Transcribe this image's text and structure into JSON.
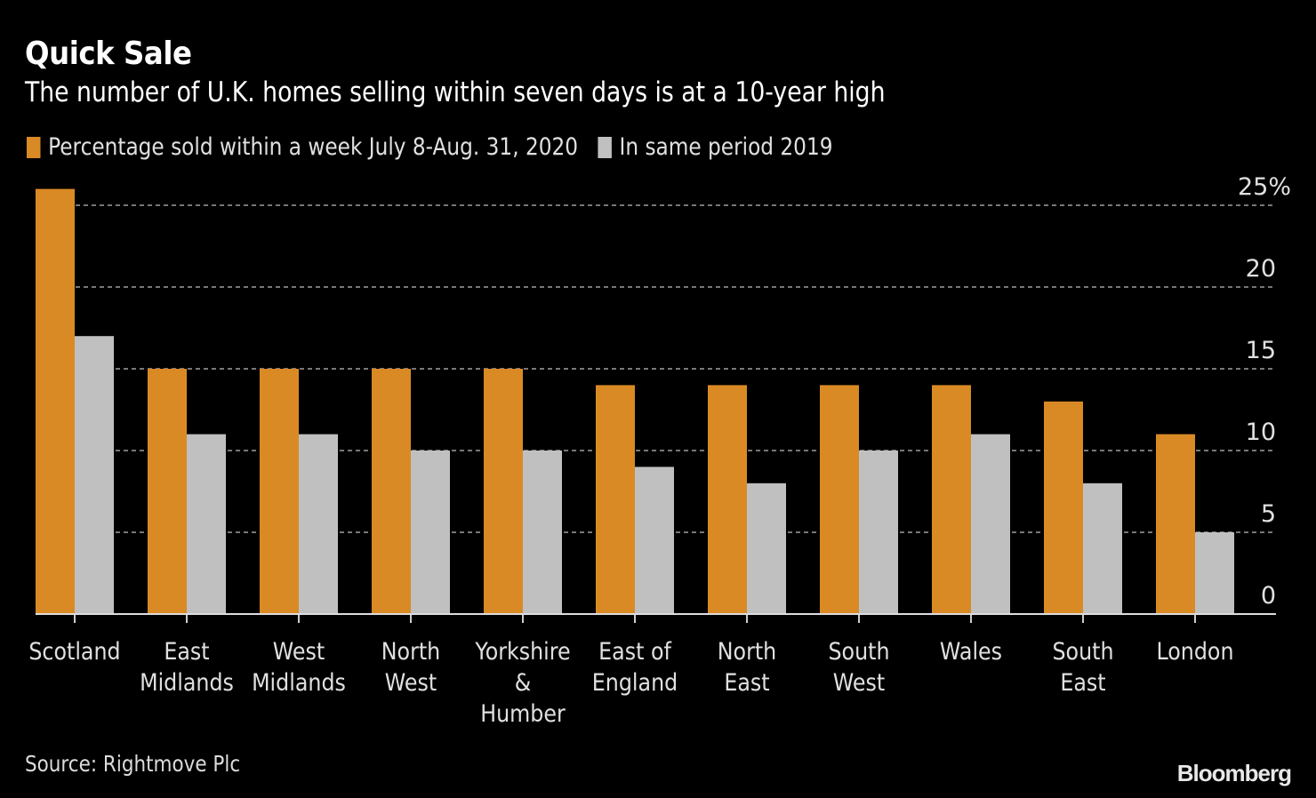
{
  "chart_data": {
    "type": "bar",
    "title": "Quick Sale",
    "subtitle": "The number of U.K. homes selling within seven days is at a 10-year high",
    "xlabel": "",
    "ylabel": "",
    "ylim": [
      0,
      25
    ],
    "yticks": [
      0,
      5,
      10,
      15,
      20,
      25
    ],
    "ytick_labels": [
      "0",
      "5",
      "10",
      "15",
      "20",
      "25%"
    ],
    "y_axis_position": "right",
    "grid": true,
    "legend_position": "top-left",
    "categories": [
      [
        "Scotland"
      ],
      [
        "East",
        "Midlands"
      ],
      [
        "West",
        "Midlands"
      ],
      [
        "North",
        "West"
      ],
      [
        "Yorkshire",
        "&",
        "Humber"
      ],
      [
        "East of",
        "England"
      ],
      [
        "North",
        "East"
      ],
      [
        "South",
        "West"
      ],
      [
        "Wales"
      ],
      [
        "South",
        "East"
      ],
      [
        "London"
      ]
    ],
    "series": [
      {
        "name": "Percentage sold within a week July 8-Aug. 31, 2020",
        "color": "#da8a25",
        "values": [
          26,
          15,
          15,
          15,
          15,
          14,
          14,
          14,
          14,
          13,
          11
        ]
      },
      {
        "name": "In same period 2019",
        "color": "#c0c0c0",
        "values": [
          17,
          11,
          11,
          10,
          10,
          9,
          8,
          10,
          11,
          8,
          5
        ]
      }
    ],
    "source": "Source: Rightmove Plc",
    "brand": "Bloomberg"
  }
}
